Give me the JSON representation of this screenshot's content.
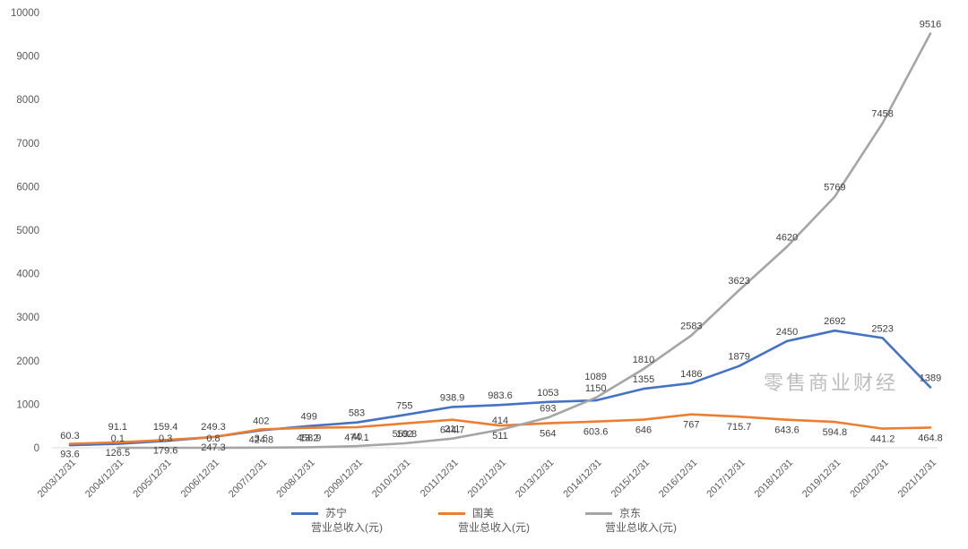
{
  "watermark": {
    "text": "零售商业财经"
  },
  "chart_data": {
    "type": "line",
    "title": "",
    "xlabel": "",
    "ylabel": "",
    "ylim": [
      0,
      10000
    ],
    "y_ticks": [
      0,
      1000,
      2000,
      3000,
      4000,
      5000,
      6000,
      7000,
      8000,
      9000,
      10000
    ],
    "grid": false,
    "legend_position": "bottom",
    "x": [
      "2003/12/31",
      "2004/12/31",
      "2005/12/31",
      "2006/12/31",
      "2007/12/31",
      "2008/12/31",
      "2009/12/31",
      "2010/12/31",
      "2011/12/31",
      "2012/12/31",
      "2013/12/31",
      "2014/12/31",
      "2015/12/31",
      "2016/12/31",
      "2017/12/31",
      "2018/12/31",
      "2019/12/31",
      "2020/12/31",
      "2021/12/31"
    ],
    "series": [
      {
        "key": "suning",
        "name": "苏宁",
        "legend_sub": "营业总收入(元)",
        "color": "#4472c4",
        "label_position": "above",
        "values": [
          60.3,
          91.1,
          159.4,
          249.3,
          402,
          499,
          583,
          755,
          938.9,
          983.6,
          1053,
          1089,
          1355,
          1486,
          1879,
          2450,
          2692,
          2523,
          1389
        ]
      },
      {
        "key": "gome",
        "name": "国美",
        "legend_sub": "营业总收入(元)",
        "color": "#ed7d31",
        "label_position": "below",
        "values": [
          93.6,
          126.5,
          179.6,
          247.3,
          424.8,
          458.9,
          474.1,
          559.8,
          644.7,
          511,
          564,
          603.6,
          646,
          767,
          715.7,
          643.6,
          594.8,
          441.2,
          464.8
        ]
      },
      {
        "key": "jd",
        "name": "京东",
        "legend_sub": "营业总收入(元)",
        "color": "#a5a5a5",
        "label_position": "above",
        "values": [
          null,
          0.1,
          0.3,
          0.8,
          3.6,
          13.2,
          40,
          102,
          211,
          414,
          693,
          1150,
          1810,
          2583,
          3623,
          4620,
          5769,
          7458,
          9516
        ]
      }
    ]
  }
}
